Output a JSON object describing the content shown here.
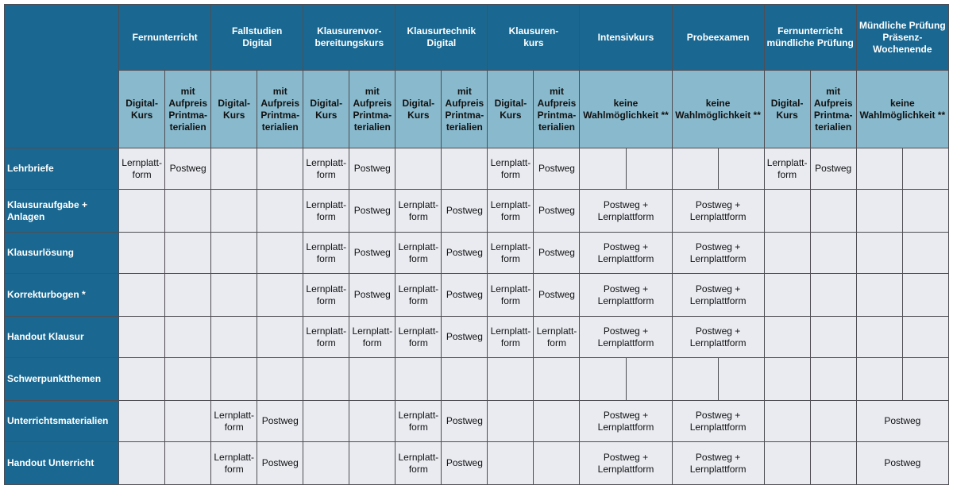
{
  "columns": [
    {
      "title": "Fernunterricht",
      "span": 2
    },
    {
      "title": "Fallstudien\nDigital",
      "span": 2
    },
    {
      "title": "Klausurenvor-\nbereitungskurs",
      "span": 2
    },
    {
      "title": "Klausurtechnik\nDigital",
      "span": 2
    },
    {
      "title": "Klausuren-\nkurs",
      "span": 2
    },
    {
      "title": "Intensivkurs",
      "span": 2
    },
    {
      "title": "Probeexamen",
      "span": 2
    },
    {
      "title": "Fernunterricht\nmündliche Prüfung",
      "span": 2
    },
    {
      "title": "Mündliche Prüfung\nPräsenz-\nWochenende",
      "span": 2
    }
  ],
  "subheaders": [
    {
      "text": "Digital-\nKurs",
      "span": 1
    },
    {
      "text": "mit\nAufpreis\nPrintma-\nterialien",
      "span": 1
    },
    {
      "text": "Digital-\nKurs",
      "span": 1
    },
    {
      "text": "mit\nAufpreis\nPrintma-\nterialien",
      "span": 1
    },
    {
      "text": "Digital-\nKurs",
      "span": 1
    },
    {
      "text": "mit\nAufpreis\nPrintma-\nterialien",
      "span": 1
    },
    {
      "text": "Digital-\nKurs",
      "span": 1
    },
    {
      "text": "mit\nAufpreis\nPrintma-\nterialien",
      "span": 1
    },
    {
      "text": "Digital-\nKurs",
      "span": 1
    },
    {
      "text": "mit\nAufpreis\nPrintma-\nterialien",
      "span": 1
    },
    {
      "text": "keine\nWahlmöglichkeit **",
      "span": 2
    },
    {
      "text": "keine\nWahlmöglichkeit **",
      "span": 2
    },
    {
      "text": "Digital-\nKurs",
      "span": 1
    },
    {
      "text": "mit\nAufpreis\nPrintma-\nterialien",
      "span": 1
    },
    {
      "text": "keine\nWahlmöglichkeit **",
      "span": 2
    }
  ],
  "rows": [
    {
      "label": "Lehrbriefe",
      "cells": [
        {
          "t": "Lernplatt-\nform",
          "s": 1
        },
        {
          "t": "Postweg",
          "s": 1
        },
        {
          "t": "",
          "s": 1
        },
        {
          "t": "",
          "s": 1
        },
        {
          "t": "Lernplatt-\nform",
          "s": 1
        },
        {
          "t": "Postweg",
          "s": 1
        },
        {
          "t": "",
          "s": 1
        },
        {
          "t": "",
          "s": 1
        },
        {
          "t": "Lernplatt-\nform",
          "s": 1
        },
        {
          "t": "Postweg",
          "s": 1
        },
        {
          "t": "",
          "s": 1
        },
        {
          "t": "",
          "s": 1
        },
        {
          "t": "",
          "s": 1
        },
        {
          "t": "",
          "s": 1
        },
        {
          "t": "Lernplatt-\nform",
          "s": 1
        },
        {
          "t": "Postweg",
          "s": 1
        },
        {
          "t": "",
          "s": 1
        },
        {
          "t": "",
          "s": 1
        }
      ]
    },
    {
      "label": "Klausuraufgabe +\n Anlagen",
      "cells": [
        {
          "t": "",
          "s": 1
        },
        {
          "t": "",
          "s": 1
        },
        {
          "t": "",
          "s": 1
        },
        {
          "t": "",
          "s": 1
        },
        {
          "t": "Lernplatt-\nform",
          "s": 1
        },
        {
          "t": "Postweg",
          "s": 1
        },
        {
          "t": "Lernplatt-\nform",
          "s": 1
        },
        {
          "t": "Postweg",
          "s": 1
        },
        {
          "t": "Lernplatt-\nform",
          "s": 1
        },
        {
          "t": "Postweg",
          "s": 1
        },
        {
          "t": "Postweg +\nLernplattform",
          "s": 2
        },
        {
          "t": "Postweg +\nLernplattform",
          "s": 2
        },
        {
          "t": "",
          "s": 1
        },
        {
          "t": "",
          "s": 1
        },
        {
          "t": "",
          "s": 1
        },
        {
          "t": "",
          "s": 1
        }
      ]
    },
    {
      "label": "Klausurlösung",
      "cells": [
        {
          "t": "",
          "s": 1
        },
        {
          "t": "",
          "s": 1
        },
        {
          "t": "",
          "s": 1
        },
        {
          "t": "",
          "s": 1
        },
        {
          "t": "Lernplatt-\nform",
          "s": 1
        },
        {
          "t": "Postweg",
          "s": 1
        },
        {
          "t": "Lernplatt-\nform",
          "s": 1
        },
        {
          "t": "Postweg",
          "s": 1
        },
        {
          "t": "Lernplatt-\nform",
          "s": 1
        },
        {
          "t": "Postweg",
          "s": 1
        },
        {
          "t": "Postweg +\nLernplattform",
          "s": 2
        },
        {
          "t": "Postweg +\nLernplattform",
          "s": 2
        },
        {
          "t": "",
          "s": 1
        },
        {
          "t": "",
          "s": 1
        },
        {
          "t": "",
          "s": 1
        },
        {
          "t": "",
          "s": 1
        }
      ]
    },
    {
      "label": "Korrekturbogen *",
      "cells": [
        {
          "t": "",
          "s": 1
        },
        {
          "t": "",
          "s": 1
        },
        {
          "t": "",
          "s": 1
        },
        {
          "t": "",
          "s": 1
        },
        {
          "t": "Lernplatt-\nform",
          "s": 1
        },
        {
          "t": "Postweg",
          "s": 1
        },
        {
          "t": "Lernplatt-\nform",
          "s": 1
        },
        {
          "t": "Postweg",
          "s": 1
        },
        {
          "t": "Lernplatt-\nform",
          "s": 1
        },
        {
          "t": "Postweg",
          "s": 1
        },
        {
          "t": "Postweg +\nLernplattform",
          "s": 2
        },
        {
          "t": "Postweg +\nLernplattform",
          "s": 2
        },
        {
          "t": "",
          "s": 1
        },
        {
          "t": "",
          "s": 1
        },
        {
          "t": "",
          "s": 1
        },
        {
          "t": "",
          "s": 1
        }
      ]
    },
    {
      "label": "Handout Klausur",
      "cells": [
        {
          "t": "",
          "s": 1
        },
        {
          "t": "",
          "s": 1
        },
        {
          "t": "",
          "s": 1
        },
        {
          "t": "",
          "s": 1
        },
        {
          "t": "Lernplatt-\nform",
          "s": 1
        },
        {
          "t": "Lernplatt-\nform",
          "s": 1
        },
        {
          "t": "Lernplatt-\nform",
          "s": 1
        },
        {
          "t": "Postweg",
          "s": 1
        },
        {
          "t": "Lernplatt-\nform",
          "s": 1
        },
        {
          "t": "Lernplatt-\nform",
          "s": 1
        },
        {
          "t": "Postweg +\nLernplattform",
          "s": 2
        },
        {
          "t": "Postweg +\nLernplattform",
          "s": 2
        },
        {
          "t": "",
          "s": 1
        },
        {
          "t": "",
          "s": 1
        },
        {
          "t": "",
          "s": 1
        },
        {
          "t": "",
          "s": 1
        }
      ]
    },
    {
      "label": "Schwerpunktthemen",
      "cells": [
        {
          "t": "",
          "s": 1
        },
        {
          "t": "",
          "s": 1
        },
        {
          "t": "",
          "s": 1
        },
        {
          "t": "",
          "s": 1
        },
        {
          "t": "",
          "s": 1
        },
        {
          "t": "",
          "s": 1
        },
        {
          "t": "",
          "s": 1
        },
        {
          "t": "",
          "s": 1
        },
        {
          "t": "",
          "s": 1
        },
        {
          "t": "",
          "s": 1
        },
        {
          "t": "",
          "s": 1
        },
        {
          "t": "",
          "s": 1
        },
        {
          "t": "",
          "s": 1
        },
        {
          "t": "",
          "s": 1
        },
        {
          "t": "",
          "s": 1
        },
        {
          "t": "",
          "s": 1
        },
        {
          "t": "",
          "s": 1
        },
        {
          "t": "",
          "s": 1
        }
      ]
    },
    {
      "label": "Unterrichtsmaterialien",
      "cells": [
        {
          "t": "",
          "s": 1
        },
        {
          "t": "",
          "s": 1
        },
        {
          "t": "Lernplatt-\nform",
          "s": 1
        },
        {
          "t": "Postweg",
          "s": 1
        },
        {
          "t": "",
          "s": 1
        },
        {
          "t": "",
          "s": 1
        },
        {
          "t": "Lernplatt-\nform",
          "s": 1
        },
        {
          "t": "Postweg",
          "s": 1
        },
        {
          "t": "",
          "s": 1
        },
        {
          "t": "",
          "s": 1
        },
        {
          "t": "Postweg +\nLernplattform",
          "s": 2
        },
        {
          "t": "Postweg +\nLernplattform",
          "s": 2
        },
        {
          "t": "",
          "s": 1
        },
        {
          "t": "",
          "s": 1
        },
        {
          "t": "Postweg",
          "s": 2
        }
      ]
    },
    {
      "label": "Handout Unterricht",
      "cells": [
        {
          "t": "",
          "s": 1
        },
        {
          "t": "",
          "s": 1
        },
        {
          "t": "Lernplatt-\nform",
          "s": 1
        },
        {
          "t": "Postweg",
          "s": 1
        },
        {
          "t": "",
          "s": 1
        },
        {
          "t": "",
          "s": 1
        },
        {
          "t": "Lernplatt-\nform",
          "s": 1
        },
        {
          "t": "Postweg",
          "s": 1
        },
        {
          "t": "",
          "s": 1
        },
        {
          "t": "",
          "s": 1
        },
        {
          "t": "Postweg +\nLernplattform",
          "s": 2
        },
        {
          "t": "Postweg +\nLernplattform",
          "s": 2
        },
        {
          "t": "",
          "s": 1
        },
        {
          "t": "",
          "s": 1
        },
        {
          "t": "Postweg",
          "s": 2
        }
      ]
    }
  ]
}
